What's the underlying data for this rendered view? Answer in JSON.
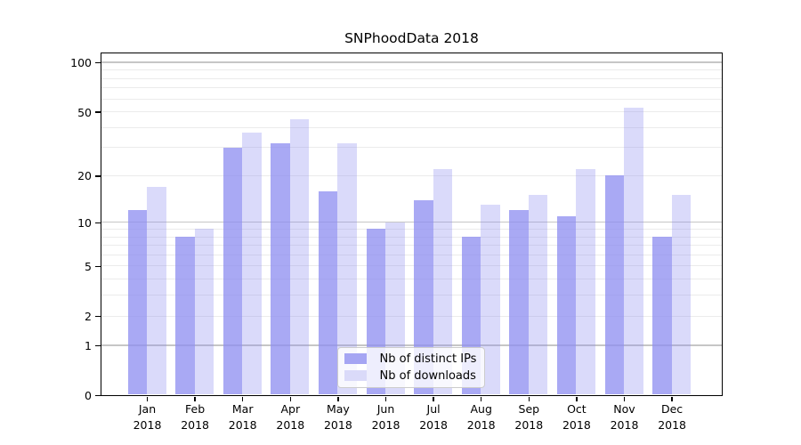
{
  "chart_data": {
    "type": "bar",
    "title": "SNPhoodData 2018",
    "categories": [
      "Jan 2018",
      "Feb 2018",
      "Mar 2018",
      "Apr 2018",
      "May 2018",
      "Jun 2018",
      "Jul 2018",
      "Aug 2018",
      "Sep 2018",
      "Oct 2018",
      "Nov 2018",
      "Dec 2018"
    ],
    "months": [
      "Jan",
      "Feb",
      "Mar",
      "Apr",
      "May",
      "Jun",
      "Jul",
      "Aug",
      "Sep",
      "Oct",
      "Nov",
      "Dec"
    ],
    "year": "2018",
    "series": [
      {
        "key": "distinct-ips",
        "name": "Nb of distinct IPs",
        "color": "#8c8cf0",
        "fill": "rgba(140,140,240,0.75)",
        "legend_swatch": "#a5a5f3",
        "values": [
          12,
          8,
          30,
          32,
          16,
          9,
          14,
          8,
          12,
          11,
          20,
          8
        ]
      },
      {
        "key": "downloads",
        "name": "Nb of downloads",
        "color": "#8c8cf0",
        "fill": "rgba(140,140,240,0.32)",
        "legend_swatch": "#dadaf9",
        "values": [
          17,
          9,
          37,
          45,
          32,
          10,
          22,
          13,
          15,
          22,
          53,
          15
        ]
      }
    ],
    "y_axis": {
      "scale": "log1p",
      "tick_labels": [
        "0",
        "1",
        "2",
        "5",
        "10",
        "20",
        "50",
        "100"
      ],
      "tick_values": [
        0,
        1,
        2,
        5,
        10,
        20,
        50,
        100
      ],
      "major_gridlines": [
        1,
        10,
        100
      ],
      "minor_gridlines": [
        2,
        3,
        4,
        5,
        6,
        7,
        8,
        9,
        20,
        30,
        40,
        50,
        60,
        70,
        80,
        90
      ],
      "range": [
        0,
        114
      ]
    },
    "xlabel": "",
    "ylabel": "",
    "grid": true,
    "legend_position": "lower-center-inside"
  },
  "colors": {
    "background": "#ffffff",
    "axis": "#000000",
    "major_grid": "#c6c6c6",
    "minor_grid": "#ebebeb",
    "legend_border": "#cccccc",
    "legend_bg": "rgba(255,255,255,0.8)"
  }
}
